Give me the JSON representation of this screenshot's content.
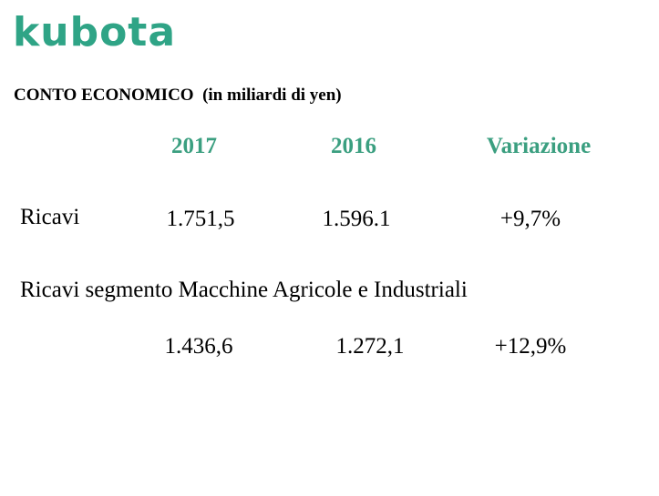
{
  "logo": "kubota",
  "header": {
    "title": "CONTO ECONOMICO  (in miliardi di yen)"
  },
  "table": {
    "columns": [
      "2017",
      "2016",
      "Variazione"
    ],
    "rows": [
      {
        "label": "Ricavi",
        "values": [
          "1.751,5",
          "1.596.1",
          "+9,7%"
        ]
      },
      {
        "label": "Ricavi segmento Macchine Agricole e Industriali",
        "values": [
          "1.436,6",
          "1.272,1",
          "+12,9%"
        ]
      }
    ]
  }
}
